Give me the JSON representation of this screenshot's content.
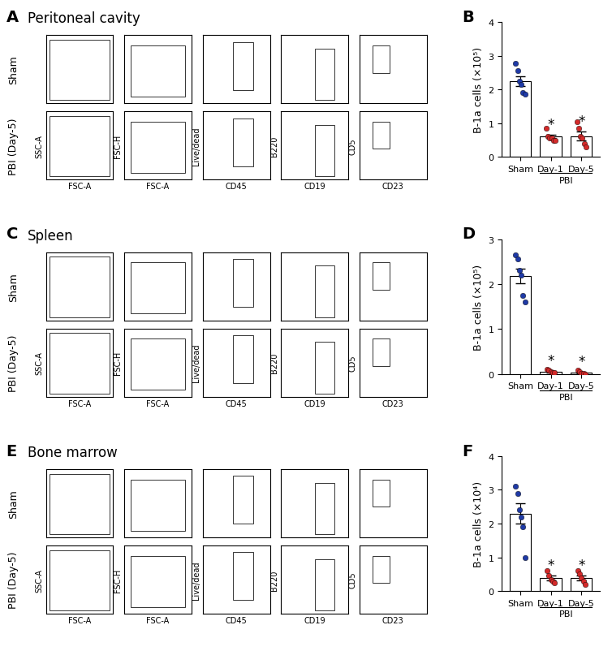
{
  "flow_panels": [
    {
      "label": "A",
      "title": "Peritoneal cavity",
      "rows": [
        "Sham",
        "PBI (Day-5)"
      ],
      "plots": [
        {
          "x": "FSC-A",
          "y": "SSC-A"
        },
        {
          "x": "FSC-A",
          "y": "FSC-H"
        },
        {
          "x": "CD45",
          "y": "Live/dead"
        },
        {
          "x": "CD19",
          "y": "B220"
        },
        {
          "x": "CD23",
          "y": "CD5"
        }
      ]
    },
    {
      "label": "C",
      "title": "Spleen",
      "rows": [
        "Sham",
        "PBI (Day-5)"
      ],
      "plots": [
        {
          "x": "FSC-A",
          "y": "SSC-A"
        },
        {
          "x": "FSC-A",
          "y": "FSC-H"
        },
        {
          "x": "CD45",
          "y": "Live/dead"
        },
        {
          "x": "CD19",
          "y": "B220"
        },
        {
          "x": "CD23",
          "y": "CD5"
        }
      ]
    },
    {
      "label": "E",
      "title": "Bone marrow",
      "rows": [
        "Sham",
        "PBI (Day-5)"
      ],
      "plots": [
        {
          "x": "FSC-A",
          "y": "SSC-A"
        },
        {
          "x": "FSC-A",
          "y": "FSC-H"
        },
        {
          "x": "CD45",
          "y": "Live/dead"
        },
        {
          "x": "CD19",
          "y": "B220"
        },
        {
          "x": "CD23",
          "y": "CD5"
        }
      ]
    }
  ],
  "chart_data": [
    {
      "type": "bar",
      "label": "B",
      "ylabel": "B-1a cells (×10⁵)",
      "group_label": "PBI",
      "categories": [
        "Sham",
        "Day-1",
        "Day-5"
      ],
      "values": [
        2.25,
        0.6,
        0.62
      ],
      "errors": [
        0.15,
        0.05,
        0.13
      ],
      "points": [
        [
          2.78,
          2.55,
          2.25,
          2.15,
          1.9,
          1.85
        ],
        [
          0.85,
          0.6,
          0.55,
          0.55,
          0.5,
          0.5
        ],
        [
          1.05,
          0.85,
          0.6,
          0.55,
          0.4,
          0.3
        ]
      ],
      "significance": [
        null,
        "*",
        "*"
      ],
      "colors": [
        "#1f3aa6",
        "#d42a2a",
        "#d42a2a"
      ],
      "ylim": [
        0,
        4
      ],
      "yticks": [
        0,
        1,
        2,
        3,
        4
      ]
    },
    {
      "type": "bar",
      "label": "D",
      "ylabel": "B-1a cells (×10⁵)",
      "group_label": "PBI",
      "categories": [
        "Sham",
        "Day-1",
        "Day-5"
      ],
      "values": [
        2.18,
        0.05,
        0.03
      ],
      "errors": [
        0.16,
        0.02,
        0.015
      ],
      "points": [
        [
          2.65,
          2.55,
          2.3,
          2.2,
          1.75,
          1.6
        ],
        [
          0.1,
          0.08,
          0.05,
          0.03,
          0.03
        ],
        [
          0.08,
          0.05,
          0.02,
          0.01,
          0.0
        ]
      ],
      "significance": [
        null,
        "*",
        "*"
      ],
      "colors": [
        "#1f3aa6",
        "#d42a2a",
        "#d42a2a"
      ],
      "ylim": [
        0,
        3
      ],
      "yticks": [
        0,
        1,
        2,
        3
      ]
    },
    {
      "type": "bar",
      "label": "F",
      "ylabel": "B-1a cells (×10⁴)",
      "group_label": "PBI",
      "categories": [
        "Sham",
        "Day-1",
        "Day-5"
      ],
      "values": [
        2.3,
        0.38,
        0.38
      ],
      "errors": [
        0.3,
        0.07,
        0.07
      ],
      "points": [
        [
          3.1,
          2.9,
          2.4,
          2.2,
          1.9,
          1.0
        ],
        [
          0.6,
          0.45,
          0.35,
          0.3,
          0.25
        ],
        [
          0.6,
          0.5,
          0.4,
          0.3,
          0.2
        ]
      ],
      "significance": [
        null,
        "*",
        "*"
      ],
      "colors": [
        "#1f3aa6",
        "#d42a2a",
        "#d42a2a"
      ],
      "ylim": [
        0,
        4
      ],
      "yticks": [
        0,
        1,
        2,
        3,
        4
      ]
    }
  ]
}
